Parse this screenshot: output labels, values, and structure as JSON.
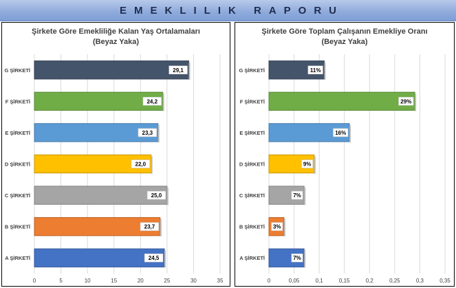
{
  "header": {
    "title": "EMEKLILIK RAPORU"
  },
  "chart_data": [
    {
      "type": "bar",
      "orientation": "horizontal",
      "title": "Şirkete Göre Emekliliğe Kalan Yaş Ortalamaları",
      "subtitle": "(Beyaz Yaka)",
      "categories": [
        "G ŞİRKETİ",
        "F ŞİRKETİ",
        "E ŞİRKETİ",
        "D ŞİRKETİ",
        "C ŞİRKETİ",
        "B ŞİRKETİ",
        "A ŞİRKETİ"
      ],
      "values": [
        29.1,
        24.2,
        23.3,
        22.0,
        25.0,
        23.7,
        24.5
      ],
      "data_labels": [
        "29,1",
        "24,2",
        "23,3",
        "22,0",
        "25,0",
        "23,7",
        "24,5"
      ],
      "colors": [
        "#44546a",
        "#70ad47",
        "#5b9bd5",
        "#ffc000",
        "#a5a5a5",
        "#ed7d31",
        "#4472c4"
      ],
      "xlim": [
        0,
        35
      ],
      "xticks": [
        0,
        5,
        10,
        15,
        20,
        25,
        30,
        35
      ],
      "xtick_labels": [
        "0",
        "5",
        "10",
        "15",
        "20",
        "25",
        "30",
        "35"
      ],
      "grid": true
    },
    {
      "type": "bar",
      "orientation": "horizontal",
      "title": "Şirkete Göre Toplam Çalışanın Emekliye Oranı",
      "subtitle": "(Beyaz Yaka)",
      "categories": [
        "G ŞİRKETİ",
        "F ŞİRKETİ",
        "E ŞİRKETİ",
        "D ŞİRKETİ",
        "C ŞİRKETİ",
        "B ŞİRKETİ",
        "A ŞİRKETİ"
      ],
      "values": [
        0.11,
        0.29,
        0.16,
        0.09,
        0.07,
        0.03,
        0.07
      ],
      "data_labels": [
        "11%",
        "29%",
        "16%",
        "9%",
        "7%",
        "3%",
        "7%"
      ],
      "colors": [
        "#44546a",
        "#70ad47",
        "#5b9bd5",
        "#ffc000",
        "#a5a5a5",
        "#ed7d31",
        "#4472c4"
      ],
      "xlim": [
        0,
        0.35
      ],
      "xticks": [
        0,
        0.05,
        0.1,
        0.15,
        0.2,
        0.25,
        0.3,
        0.35
      ],
      "xtick_labels": [
        "0",
        "0,05",
        "0,1",
        "0,15",
        "0,2",
        "0,25",
        "0,3",
        "0,35"
      ],
      "grid": true
    }
  ]
}
